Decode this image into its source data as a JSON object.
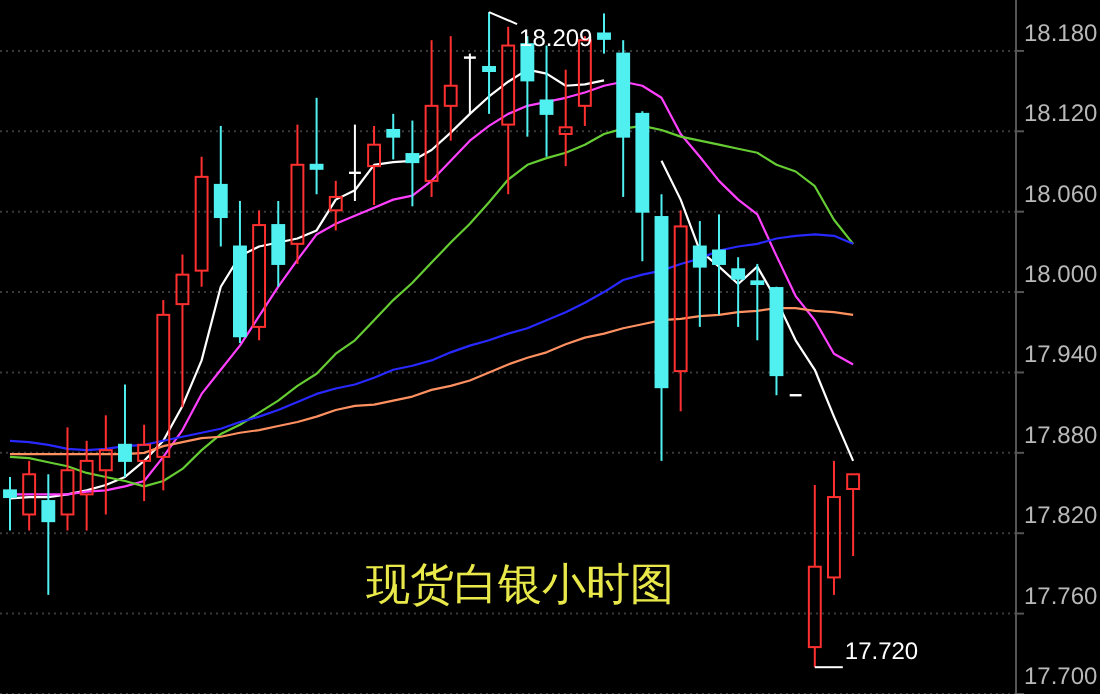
{
  "chart_data": {
    "type": "candlestick",
    "title": "现货白银小时图",
    "categories": [
      null,
      null,
      null,
      null,
      null,
      null,
      null,
      null,
      null,
      null,
      null,
      null,
      null,
      null,
      null,
      null,
      null,
      null,
      null,
      null,
      null,
      null,
      null,
      null,
      null,
      null,
      null,
      null,
      null,
      null,
      null,
      null,
      null,
      null,
      null,
      null,
      null,
      null,
      null,
      null,
      null,
      null,
      null,
      null,
      null
    ],
    "ohlc": [
      [
        17.852,
        17.862,
        17.822,
        17.847
      ],
      [
        17.834,
        17.874,
        17.822,
        17.864
      ],
      [
        17.844,
        17.864,
        17.774,
        17.829
      ],
      [
        17.834,
        17.899,
        17.822,
        17.867
      ],
      [
        17.849,
        17.889,
        17.822,
        17.874
      ],
      [
        17.867,
        17.908,
        17.834,
        17.882
      ],
      [
        17.886,
        17.931,
        17.862,
        17.874
      ],
      [
        17.874,
        17.901,
        17.844,
        17.886
      ],
      [
        17.877,
        17.994,
        17.852,
        17.983
      ],
      [
        17.991,
        18.028,
        17.914,
        18.013
      ],
      [
        18.016,
        18.101,
        18.004,
        18.086
      ],
      [
        18.08,
        18.124,
        18.034,
        18.056
      ],
      [
        18.034,
        18.068,
        17.962,
        17.967
      ],
      [
        17.974,
        18.061,
        17.964,
        18.05
      ],
      [
        18.05,
        18.068,
        18.004,
        18.021
      ],
      [
        18.036,
        18.125,
        18.021,
        18.095
      ],
      [
        18.095,
        18.145,
        18.073,
        18.092
      ],
      [
        18.061,
        18.083,
        18.046,
        18.071
      ],
      [
        18.089,
        18.125,
        18.068,
        18.089
      ],
      [
        18.094,
        18.124,
        18.065,
        18.11
      ],
      [
        18.121,
        18.133,
        18.099,
        18.116
      ],
      [
        18.103,
        18.128,
        18.064,
        18.097
      ],
      [
        18.083,
        18.188,
        18.071,
        18.139
      ],
      [
        18.139,
        18.191,
        18.113,
        18.154
      ],
      [
        18.175,
        18.178,
        18.133,
        18.175
      ],
      [
        18.168,
        18.209,
        18.133,
        18.165
      ],
      [
        18.125,
        18.198,
        18.073,
        18.184
      ],
      [
        18.185,
        18.191,
        18.116,
        18.158
      ],
      [
        18.143,
        18.184,
        18.101,
        18.133
      ],
      [
        18.118,
        18.166,
        18.094,
        18.123
      ],
      [
        18.139,
        18.191,
        18.124,
        18.188
      ],
      [
        18.193,
        18.208,
        18.178,
        18.189
      ],
      [
        18.178,
        18.188,
        18.071,
        18.116
      ],
      [
        18.133,
        18.135,
        18.023,
        18.06
      ],
      [
        18.056,
        18.073,
        17.874,
        17.929
      ],
      [
        17.941,
        18.061,
        17.911,
        18.049
      ],
      [
        18.034,
        18.053,
        17.974,
        18.019
      ],
      [
        18.031,
        18.058,
        17.983,
        18.021
      ],
      [
        18.017,
        18.026,
        17.974,
        18.01
      ],
      [
        18.008,
        18.021,
        17.964,
        18.006
      ],
      [
        18.003,
        18.004,
        17.923,
        17.938
      ],
      [
        17.923,
        17.923,
        17.923,
        17.923
      ],
      [
        17.735,
        17.856,
        17.72,
        17.795
      ],
      [
        17.787,
        17.874,
        17.774,
        17.847
      ],
      [
        17.853,
        17.864,
        17.803,
        17.864
      ]
    ],
    "series": [
      {
        "type": "line",
        "color": "#ffffff",
        "values": [
          17.846,
          17.847,
          17.847,
          17.849,
          17.852,
          17.856,
          17.862,
          17.874,
          17.889,
          17.915,
          17.949,
          18.004,
          18.027,
          18.034,
          18.037,
          18.04,
          18.046,
          18.069,
          18.076,
          18.095,
          18.097,
          18.098,
          18.106,
          18.119,
          18.133,
          18.146,
          18.157,
          18.166,
          18.163,
          18.154,
          18.155,
          18.158,
          null,
          null,
          18.098,
          18.069,
          18.031,
          18.019,
          18.006,
          18.019,
          17.994,
          17.964,
          17.942,
          17.907,
          17.874
        ]
      },
      {
        "type": "line",
        "color": "#ff40ff",
        "values": [
          17.849,
          17.849,
          17.849,
          17.849,
          17.851,
          17.852,
          17.855,
          17.859,
          17.877,
          17.897,
          17.924,
          17.942,
          17.96,
          17.982,
          18.004,
          18.024,
          18.043,
          18.051,
          18.057,
          18.063,
          18.069,
          18.072,
          18.083,
          18.098,
          18.113,
          18.124,
          18.133,
          18.139,
          18.142,
          18.145,
          18.149,
          18.154,
          18.157,
          18.154,
          18.145,
          18.118,
          18.101,
          18.083,
          18.069,
          18.058,
          18.027,
          17.997,
          17.979,
          17.954,
          17.946
        ]
      },
      {
        "type": "line",
        "color": "#66cc33",
        "values": [
          17.877,
          17.876,
          17.873,
          17.87,
          17.865,
          17.862,
          17.859,
          17.855,
          17.859,
          17.868,
          17.882,
          17.894,
          17.901,
          17.91,
          17.919,
          17.93,
          17.939,
          17.954,
          17.964,
          17.979,
          17.994,
          18.007,
          18.022,
          18.037,
          18.051,
          18.067,
          18.084,
          18.095,
          18.1,
          18.104,
          18.11,
          18.118,
          18.122,
          18.124,
          18.121,
          18.116,
          18.113,
          18.11,
          18.107,
          18.104,
          18.095,
          18.09,
          18.079,
          18.054,
          18.036
        ]
      },
      {
        "type": "line",
        "color": "#2828ff",
        "values": [
          17.889,
          17.888,
          17.886,
          17.883,
          17.882,
          17.883,
          17.885,
          17.886,
          17.889,
          17.892,
          17.895,
          17.898,
          17.903,
          17.907,
          17.912,
          17.918,
          17.924,
          17.928,
          17.931,
          17.936,
          17.942,
          17.945,
          17.949,
          17.955,
          17.96,
          17.964,
          17.969,
          17.973,
          17.979,
          17.985,
          17.992,
          18.0,
          18.009,
          18.013,
          18.016,
          18.021,
          18.025,
          18.031,
          18.034,
          18.036,
          18.04,
          18.042,
          18.043,
          18.042,
          18.036
        ]
      },
      {
        "type": "line",
        "color": "#ff9060",
        "values": [
          17.879,
          17.879,
          17.879,
          17.879,
          17.879,
          17.879,
          17.879,
          17.88,
          17.885,
          17.888,
          17.891,
          17.892,
          17.895,
          17.897,
          17.9,
          17.903,
          17.907,
          17.912,
          17.915,
          17.916,
          17.919,
          17.922,
          17.927,
          17.93,
          17.934,
          17.94,
          17.946,
          17.951,
          17.955,
          17.961,
          17.966,
          17.969,
          17.973,
          17.976,
          17.979,
          17.98,
          17.982,
          17.983,
          17.985,
          17.986,
          17.988,
          17.988,
          17.986,
          17.985,
          17.983
        ]
      }
    ],
    "ylim": [
      17.7,
      18.218
    ],
    "yticks": [
      {
        "value": 17.7,
        "label": "17.700"
      },
      {
        "value": 17.76,
        "label": "17.760"
      },
      {
        "value": 17.82,
        "label": "17.820"
      },
      {
        "value": 17.88,
        "label": "17.880"
      },
      {
        "value": 17.94,
        "label": "17.940"
      },
      {
        "value": 18.0,
        "label": "18.000"
      },
      {
        "value": 18.06,
        "label": "18.060"
      },
      {
        "value": 18.12,
        "label": "18.120"
      },
      {
        "value": 18.18,
        "label": "18.180"
      }
    ],
    "grid": "y",
    "tick_labels": "y",
    "annotations": [
      "18.209",
      "17.720"
    ]
  }
}
